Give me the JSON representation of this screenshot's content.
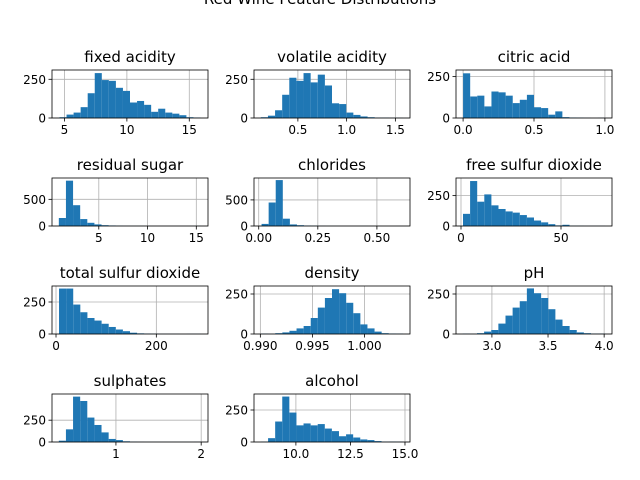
{
  "figure": {
    "suptitle": "Red Wine Feature Distributions"
  },
  "colors": {
    "bar": "#1f77b4",
    "grid": "#b0b0b0",
    "axis": "#000000",
    "background": "#ffffff"
  },
  "chart_data": [
    {
      "type": "histogram",
      "title": "fixed acidity",
      "bins": 20,
      "bin_range": [
        4.6,
        15.9
      ],
      "counts": [
        5,
        22,
        35,
        70,
        160,
        290,
        245,
        240,
        195,
        175,
        100,
        110,
        85,
        40,
        60,
        35,
        28,
        18,
        5,
        3
      ],
      "xlim": [
        4.0,
        16.5
      ],
      "ylim": [
        0,
        310
      ],
      "xticks": [
        {
          "value": 5,
          "label": "5"
        },
        {
          "value": 10,
          "label": "10"
        },
        {
          "value": 15,
          "label": "15"
        }
      ],
      "yticks": [
        {
          "value": 0,
          "label": "0"
        },
        {
          "value": 250,
          "label": "250"
        }
      ],
      "grid": true
    },
    {
      "type": "histogram",
      "title": "volatile acidity",
      "bins": 20,
      "bin_range": [
        0.12,
        1.58
      ],
      "counts": [
        5,
        15,
        50,
        150,
        260,
        240,
        290,
        230,
        280,
        210,
        95,
        90,
        35,
        20,
        10,
        5,
        2,
        2,
        1,
        1
      ],
      "xlim": [
        0.05,
        1.65
      ],
      "ylim": [
        0,
        310
      ],
      "xticks": [
        {
          "value": 0.5,
          "label": "0.5"
        },
        {
          "value": 1.0,
          "label": "1.0"
        },
        {
          "value": 1.5,
          "label": "1.5"
        }
      ],
      "yticks": [
        {
          "value": 0,
          "label": "0"
        },
        {
          "value": 250,
          "label": "250"
        }
      ],
      "grid": true
    },
    {
      "type": "histogram",
      "title": "citric acid",
      "bins": 20,
      "bin_range": [
        0.0,
        1.0
      ],
      "counts": [
        270,
        130,
        135,
        70,
        160,
        155,
        135,
        90,
        110,
        140,
        65,
        60,
        20,
        40,
        5,
        3,
        2,
        1,
        0,
        1
      ],
      "xlim": [
        -0.05,
        1.05
      ],
      "ylim": [
        0,
        290
      ],
      "xticks": [
        {
          "value": 0.0,
          "label": "0.0"
        },
        {
          "value": 0.5,
          "label": "0.5"
        },
        {
          "value": 1.0,
          "label": "1.0"
        }
      ],
      "yticks": [
        {
          "value": 0,
          "label": "0"
        },
        {
          "value": 250,
          "label": "250"
        }
      ],
      "grid": true
    },
    {
      "type": "histogram",
      "title": "residual sugar",
      "bins": 20,
      "bin_range": [
        0.9,
        15.5
      ],
      "counts": [
        150,
        850,
        390,
        130,
        60,
        30,
        15,
        10,
        5,
        3,
        2,
        2,
        1,
        1,
        1,
        1,
        1,
        1,
        1,
        2
      ],
      "xlim": [
        0.2,
        16.2
      ],
      "ylim": [
        0,
        900
      ],
      "xticks": [
        {
          "value": 5,
          "label": "5"
        },
        {
          "value": 10,
          "label": "10"
        },
        {
          "value": 15,
          "label": "15"
        }
      ],
      "yticks": [
        {
          "value": 0,
          "label": "0"
        },
        {
          "value": 500,
          "label": "500"
        }
      ],
      "grid": true
    },
    {
      "type": "histogram",
      "title": "chlorides",
      "bins": 20,
      "bin_range": [
        0.012,
        0.611
      ],
      "counts": [
        40,
        450,
        880,
        140,
        30,
        15,
        8,
        5,
        3,
        2,
        2,
        1,
        1,
        1,
        2,
        1,
        1,
        0,
        0,
        1
      ],
      "xlim": [
        -0.02,
        0.64
      ],
      "ylim": [
        0,
        920
      ],
      "xticks": [
        {
          "value": 0.0,
          "label": "0.00"
        },
        {
          "value": 0.25,
          "label": "0.25"
        },
        {
          "value": 0.5,
          "label": "0.50"
        }
      ],
      "yticks": [
        {
          "value": 0,
          "label": "0"
        },
        {
          "value": 500,
          "label": "500"
        }
      ],
      "grid": true
    },
    {
      "type": "histogram",
      "title": "free sulfur dioxide",
      "bins": 20,
      "bin_range": [
        1,
        72
      ],
      "counts": [
        100,
        370,
        200,
        260,
        170,
        140,
        120,
        110,
        90,
        70,
        45,
        30,
        15,
        5,
        10,
        2,
        2,
        1,
        1,
        1
      ],
      "xlim": [
        -2.5,
        75.5
      ],
      "ylim": [
        0,
        395
      ],
      "xticks": [
        {
          "value": 0,
          "label": "0"
        },
        {
          "value": 50,
          "label": "50"
        }
      ],
      "yticks": [
        {
          "value": 0,
          "label": "0"
        },
        {
          "value": 250,
          "label": "250"
        }
      ],
      "grid": true
    },
    {
      "type": "histogram",
      "title": "total sulfur dioxide",
      "bins": 20,
      "bin_range": [
        6,
        289
      ],
      "counts": [
        355,
        355,
        230,
        170,
        125,
        105,
        80,
        55,
        35,
        22,
        10,
        5,
        3,
        2,
        1,
        1,
        1,
        0,
        1,
        1
      ],
      "xlim": [
        -8,
        303
      ],
      "ylim": [
        0,
        375
      ],
      "xticks": [
        {
          "value": 0,
          "label": "0"
        },
        {
          "value": 200,
          "label": "200"
        }
      ],
      "yticks": [
        {
          "value": 0,
          "label": "0"
        },
        {
          "value": 250,
          "label": "250"
        }
      ],
      "grid": true
    },
    {
      "type": "histogram",
      "title": "density",
      "bins": 20,
      "bin_range": [
        0.99007,
        1.00369
      ],
      "counts": [
        2,
        1,
        5,
        10,
        20,
        35,
        50,
        100,
        165,
        225,
        280,
        255,
        195,
        130,
        60,
        35,
        15,
        5,
        3,
        2
      ],
      "xlim": [
        0.98939,
        1.00437
      ],
      "ylim": [
        0,
        300
      ],
      "xticks": [
        {
          "value": 0.99,
          "label": "0.990"
        },
        {
          "value": 0.995,
          "label": "0.995"
        },
        {
          "value": 1.0,
          "label": "1.000"
        }
      ],
      "yticks": [
        {
          "value": 0,
          "label": "0"
        },
        {
          "value": 250,
          "label": "250"
        }
      ],
      "grid": true
    },
    {
      "type": "histogram",
      "title": "pH",
      "bins": 20,
      "bin_range": [
        2.74,
        4.01
      ],
      "counts": [
        2,
        1,
        5,
        15,
        25,
        65,
        115,
        165,
        205,
        285,
        255,
        225,
        155,
        90,
        50,
        25,
        10,
        5,
        2,
        2
      ],
      "xlim": [
        2.68,
        4.07
      ],
      "ylim": [
        0,
        300
      ],
      "xticks": [
        {
          "value": 3.0,
          "label": "3.0"
        },
        {
          "value": 3.5,
          "label": "3.5"
        },
        {
          "value": 4.0,
          "label": "4.0"
        }
      ],
      "yticks": [
        {
          "value": 0,
          "label": "0"
        },
        {
          "value": 250,
          "label": "250"
        }
      ],
      "grid": true
    },
    {
      "type": "histogram",
      "title": "sulphates",
      "bins": 20,
      "bin_range": [
        0.33,
        2.0
      ],
      "counts": [
        15,
        145,
        520,
        470,
        280,
        195,
        110,
        35,
        22,
        8,
        3,
        2,
        1,
        1,
        1,
        1,
        1,
        1,
        1,
        2
      ],
      "xlim": [
        0.25,
        2.08
      ],
      "ylim": [
        0,
        550
      ],
      "xticks": [
        {
          "value": 1,
          "label": "1"
        },
        {
          "value": 2,
          "label": "2"
        }
      ],
      "yticks": [
        {
          "value": 0,
          "label": "0"
        },
        {
          "value": 250,
          "label": "250"
        }
      ],
      "grid": true
    },
    {
      "type": "histogram",
      "title": "alcohol",
      "bins": 20,
      "bin_range": [
        8.4,
        14.9
      ],
      "counts": [
        2,
        30,
        160,
        355,
        230,
        130,
        145,
        130,
        140,
        105,
        85,
        45,
        60,
        35,
        20,
        15,
        7,
        2,
        3,
        2
      ],
      "xlim": [
        8.08,
        15.23
      ],
      "ylim": [
        0,
        375
      ],
      "xticks": [
        {
          "value": 10.0,
          "label": "10.0"
        },
        {
          "value": 12.5,
          "label": "12.5"
        },
        {
          "value": 15.0,
          "label": "15.0"
        }
      ],
      "yticks": [
        {
          "value": 0,
          "label": "0"
        },
        {
          "value": 250,
          "label": "250"
        }
      ],
      "grid": true
    }
  ]
}
